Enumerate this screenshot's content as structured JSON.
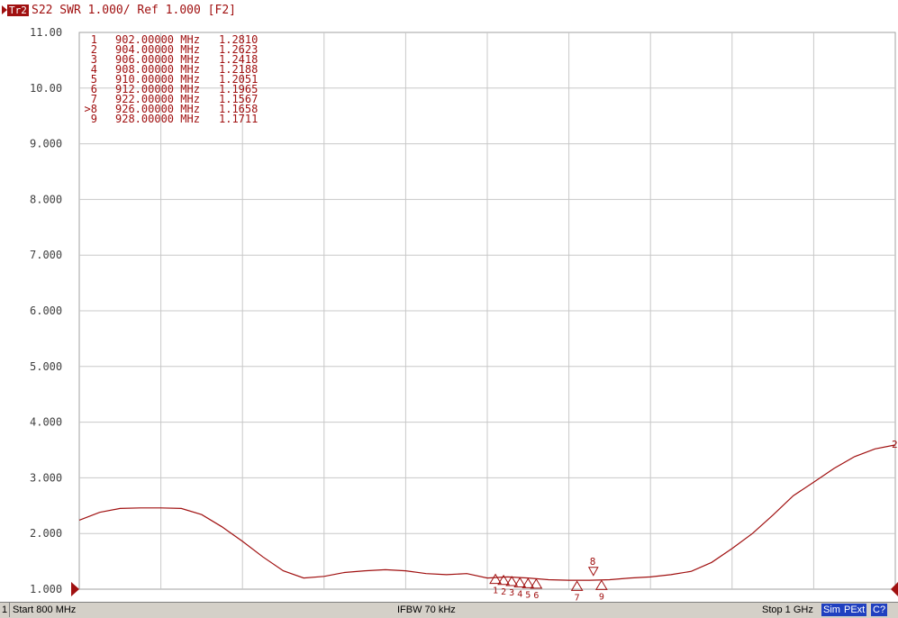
{
  "header": {
    "trace_label": "Tr2",
    "title": "S22  SWR 1.000/ Ref 1.000 [F2]"
  },
  "status": {
    "channel": "1",
    "start": "Start 800 MHz",
    "ifbw": "IFBW 70 kHz",
    "stop": "Stop 1 GHz",
    "badges": [
      "Sim",
      "PExt",
      "C?"
    ]
  },
  "chart_data": {
    "type": "line",
    "x_unit": "MHz",
    "xlim": [
      800,
      1000
    ],
    "ylim": [
      1.0,
      11.0
    ],
    "y_ticks": [
      "1.000",
      "2.000",
      "3.000",
      "4.000",
      "5.000",
      "6.000",
      "7.000",
      "8.000",
      "9.000",
      "10.00",
      "11.00"
    ],
    "grid": true,
    "trace_color": "#a01010",
    "grid_color": "#c8c8c8",
    "series": [
      {
        "x": [
          800,
          805,
          810,
          815,
          820,
          825,
          830,
          835,
          840,
          845,
          850,
          855,
          860,
          865,
          870,
          875,
          880,
          885,
          890,
          895,
          900,
          905,
          910,
          915,
          920,
          925,
          930,
          935,
          940,
          945,
          950,
          955,
          960,
          965,
          970,
          975,
          980,
          985,
          990,
          995,
          1000
        ],
        "y": [
          2.24,
          2.38,
          2.45,
          2.46,
          2.46,
          2.45,
          2.34,
          2.12,
          1.86,
          1.58,
          1.33,
          1.2,
          1.23,
          1.3,
          1.33,
          1.35,
          1.33,
          1.28,
          1.26,
          1.28,
          1.2,
          1.22,
          1.2,
          1.17,
          1.16,
          1.16,
          1.17,
          1.2,
          1.22,
          1.26,
          1.32,
          1.48,
          1.73,
          2.0,
          2.33,
          2.68,
          2.92,
          3.17,
          3.38,
          3.52,
          3.59
        ]
      }
    ],
    "end_marker_label": "2",
    "marker_table": [
      {
        "id": "1",
        "freq": "902.00000 MHz",
        "value": "1.2810"
      },
      {
        "id": "2",
        "freq": "904.00000 MHz",
        "value": "1.2623"
      },
      {
        "id": "3",
        "freq": "906.00000 MHz",
        "value": "1.2418"
      },
      {
        "id": "4",
        "freq": "908.00000 MHz",
        "value": "1.2188"
      },
      {
        "id": "5",
        "freq": "910.00000 MHz",
        "value": "1.2051"
      },
      {
        "id": "6",
        "freq": "912.00000 MHz",
        "value": "1.1965"
      },
      {
        "id": "7",
        "freq": "922.00000 MHz",
        "value": "1.1567"
      },
      {
        "id": ">8",
        "freq": "926.00000 MHz",
        "value": "1.1658"
      },
      {
        "id": "9",
        "freq": "928.00000 MHz",
        "value": "1.1711"
      }
    ],
    "markers": [
      {
        "label": "1",
        "x": 902,
        "y": 1.281
      },
      {
        "label": "2",
        "x": 904,
        "y": 1.2623
      },
      {
        "label": "3",
        "x": 906,
        "y": 1.2418
      },
      {
        "label": "4",
        "x": 908,
        "y": 1.2188
      },
      {
        "label": "5",
        "x": 910,
        "y": 1.2051
      },
      {
        "label": "6",
        "x": 912,
        "y": 1.1965
      },
      {
        "label": "7",
        "x": 922,
        "y": 1.1567
      },
      {
        "label": "8",
        "x": 926,
        "y": 1.1658,
        "active": true
      },
      {
        "label": "9",
        "x": 928,
        "y": 1.1711
      }
    ]
  }
}
